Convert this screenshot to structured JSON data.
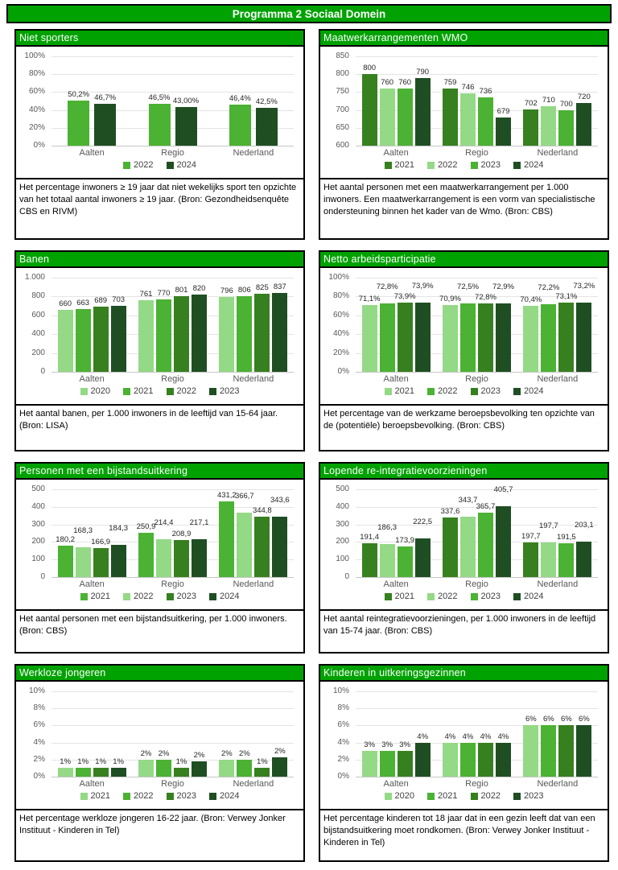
{
  "page_title": "Programma 2 Sociaal Domein",
  "palette": {
    "light_green": "#94D986",
    "bright_green": "#4BB233",
    "mid_dark_green": "#37801F",
    "dark_green": "#1F4E23",
    "header_green": "#00A202",
    "grid_line": "#E4E4E4",
    "axis_line": "#C6C6C6",
    "tick_text": "#595959",
    "data_label_text": "#262626"
  },
  "panels": [
    {
      "title": "Niet sporters",
      "caption": "Het percentage inwoners ≥ 19 jaar dat niet wekelijks sport ten opzichte van het totaal aantal inwoners ≥ 19 jaar. (Bron: Gezondheidsenquête CBS en RIVM)",
      "chart_data": {
        "type": "bar",
        "categories": [
          "Aalten",
          "Regio",
          "Nederland"
        ],
        "ymin": 0,
        "ymax": 100,
        "yticks": [
          {
            "v": 0,
            "label": "0%"
          },
          {
            "v": 20,
            "label": "20%"
          },
          {
            "v": 40,
            "label": "40%"
          },
          {
            "v": 60,
            "label": "60%"
          },
          {
            "v": 80,
            "label": "80%"
          },
          {
            "v": 100,
            "label": "100%"
          }
        ],
        "legend_position": "bottom",
        "series": [
          {
            "name": "2022",
            "shade": "bright_green",
            "values": [
              50.2,
              46.5,
              46.4
            ],
            "labels": [
              "50,2%",
              "46,5%",
              "46,4%"
            ]
          },
          {
            "name": "2024",
            "shade": "dark_green",
            "values": [
              46.7,
              43.0,
              42.5
            ],
            "labels": [
              "46,7%",
              "43,00%",
              "42,5%"
            ]
          }
        ]
      }
    },
    {
      "title": "Maatwerkarrangementen WMO",
      "caption": "Het aantal personen met een maatwerkarrangement per 1.000 inwoners. Een maatwerkarrangement is een vorm van specialistische ondersteuning binnen het kader van de Wmo. (Bron: CBS)",
      "chart_data": {
        "type": "bar",
        "categories": [
          "Aalten",
          "Regio",
          "Nederland"
        ],
        "ymin": 600,
        "ymax": 850,
        "yticks": [
          {
            "v": 600,
            "label": "600"
          },
          {
            "v": 650,
            "label": "650"
          },
          {
            "v": 700,
            "label": "700"
          },
          {
            "v": 750,
            "label": "750"
          },
          {
            "v": 800,
            "label": "800"
          },
          {
            "v": 850,
            "label": "850"
          }
        ],
        "legend_position": "bottom",
        "series": [
          {
            "name": "2021",
            "shade": "mid_dark_green",
            "values": [
              800,
              759,
              702
            ],
            "labels": [
              "800",
              "759",
              "702"
            ]
          },
          {
            "name": "2022",
            "shade": "light_green",
            "values": [
              760,
              746,
              710
            ],
            "labels": [
              "760",
              "746",
              "710"
            ]
          },
          {
            "name": "2023",
            "shade": "bright_green",
            "values": [
              760,
              736,
              700
            ],
            "labels": [
              "760",
              "736",
              "700"
            ]
          },
          {
            "name": "2024",
            "shade": "dark_green",
            "values": [
              790,
              679,
              720
            ],
            "labels": [
              "790",
              "679",
              "720"
            ]
          }
        ]
      }
    },
    {
      "title": "Banen",
      "caption": "Het aantal banen, per 1.000 inwoners in de leeftijd van 15-64 jaar. (Bron: LISA)",
      "chart_data": {
        "type": "bar",
        "categories": [
          "Aalten",
          "Regio",
          "Nederland"
        ],
        "ymin": 0,
        "ymax": 1000,
        "yticks": [
          {
            "v": 0,
            "label": "0"
          },
          {
            "v": 200,
            "label": "200"
          },
          {
            "v": 400,
            "label": "400"
          },
          {
            "v": 600,
            "label": "600"
          },
          {
            "v": 800,
            "label": "800"
          },
          {
            "v": 1000,
            "label": "1.000"
          }
        ],
        "legend_position": "bottom",
        "series": [
          {
            "name": "2020",
            "shade": "light_green",
            "values": [
              660,
              761,
              796
            ],
            "labels": [
              "660",
              "761",
              "796"
            ]
          },
          {
            "name": "2021",
            "shade": "bright_green",
            "values": [
              663,
              770,
              806
            ],
            "labels": [
              "663",
              "770",
              "806"
            ]
          },
          {
            "name": "2022",
            "shade": "mid_dark_green",
            "values": [
              689,
              801,
              825
            ],
            "labels": [
              "689",
              "801",
              "825"
            ]
          },
          {
            "name": "2023",
            "shade": "dark_green",
            "values": [
              703,
              820,
              837
            ],
            "labels": [
              "703",
              "820",
              "837"
            ]
          }
        ]
      }
    },
    {
      "title": "Netto arbeidsparticipatie",
      "caption": "Het percentage van de werkzame beroepsbevolking ten opzichte van de (potentiële) beroepsbevolking. (Bron: CBS)",
      "chart_data": {
        "type": "bar",
        "categories": [
          "Aalten",
          "Regio",
          "Nederland"
        ],
        "ymin": 0,
        "ymax": 100,
        "yticks": [
          {
            "v": 0,
            "label": "0%"
          },
          {
            "v": 20,
            "label": "20%"
          },
          {
            "v": 40,
            "label": "40%"
          },
          {
            "v": 60,
            "label": "60%"
          },
          {
            "v": 80,
            "label": "80%"
          },
          {
            "v": 100,
            "label": "100%"
          }
        ],
        "legend_position": "bottom",
        "series": [
          {
            "name": "2021",
            "shade": "light_green",
            "values": [
              71.1,
              70.9,
              70.4
            ],
            "labels": [
              "71,1%",
              "70,9%",
              "70,4%"
            ]
          },
          {
            "name": "2022",
            "shade": "bright_green",
            "values": [
              72.8,
              72.5,
              72.2
            ],
            "labels": [
              "72,8%",
              "72,5%",
              "72,2%"
            ]
          },
          {
            "name": "2023",
            "shade": "mid_dark_green",
            "values": [
              73.9,
              72.8,
              73.1
            ],
            "labels": [
              "73,9%",
              "72,8%",
              "73,1%"
            ]
          },
          {
            "name": "2024",
            "shade": "dark_green",
            "values": [
              73.9,
              72.9,
              73.2
            ],
            "labels": [
              "73,9%",
              "72,9%",
              "73,2%"
            ]
          }
        ]
      }
    },
    {
      "title": "Personen met een bijstandsuitkering",
      "caption": "Het aantal personen met een bijstandsuitkering, per 1.000 inwoners. (Bron: CBS)",
      "chart_data": {
        "type": "bar",
        "categories": [
          "Aalten",
          "Regio",
          "Nederland"
        ],
        "ymin": 0,
        "ymax": 500,
        "yticks": [
          {
            "v": 0,
            "label": "0"
          },
          {
            "v": 100,
            "label": "100"
          },
          {
            "v": 200,
            "label": "200"
          },
          {
            "v": 300,
            "label": "300"
          },
          {
            "v": 400,
            "label": "400"
          },
          {
            "v": 500,
            "label": "500"
          }
        ],
        "legend_position": "bottom",
        "series": [
          {
            "name": "2021",
            "shade": "bright_green",
            "values": [
              180.2,
              250.9,
              431.2
            ],
            "labels": [
              "180,2",
              "250,9",
              "431,2"
            ]
          },
          {
            "name": "2022",
            "shade": "light_green",
            "values": [
              168.3,
              214.4,
              366.7
            ],
            "labels": [
              "168,3",
              "214,4",
              "366,7"
            ]
          },
          {
            "name": "2023",
            "shade": "mid_dark_green",
            "values": [
              166.9,
              208.9,
              344.8
            ],
            "labels": [
              "166,9",
              "208,9",
              "344,8"
            ]
          },
          {
            "name": "2024",
            "shade": "dark_green",
            "values": [
              184.3,
              217.1,
              343.6
            ],
            "labels": [
              "184,3",
              "217,1",
              "343,6"
            ]
          }
        ]
      }
    },
    {
      "title": "Lopende re-integratievoorzieningen",
      "caption": "Het aantal reintegratievoorzieningen, per 1.000 inwoners in de leeftijd van 15-74 jaar. (Bron: CBS)",
      "chart_data": {
        "type": "bar",
        "categories": [
          "Aalten",
          "Regio",
          "Nederland"
        ],
        "ymin": 0,
        "ymax": 500,
        "yticks": [
          {
            "v": 0,
            "label": "0"
          },
          {
            "v": 100,
            "label": "100"
          },
          {
            "v": 200,
            "label": "200"
          },
          {
            "v": 300,
            "label": "300"
          },
          {
            "v": 400,
            "label": "400"
          },
          {
            "v": 500,
            "label": "500"
          }
        ],
        "legend_position": "bottom",
        "series": [
          {
            "name": "2021",
            "shade": "mid_dark_green",
            "values": [
              191.4,
              337.6,
              197.7
            ],
            "labels": [
              "191,4",
              "337,6",
              "197,7"
            ]
          },
          {
            "name": "2022",
            "shade": "light_green",
            "values": [
              186.3,
              343.7,
              197.7
            ],
            "labels": [
              "186,3",
              "343,7",
              "197,7"
            ]
          },
          {
            "name": "2023",
            "shade": "bright_green",
            "values": [
              173.9,
              365.7,
              191.5
            ],
            "labels": [
              "173,9",
              "365,7",
              "191,5"
            ]
          },
          {
            "name": "2024",
            "shade": "dark_green",
            "values": [
              222.5,
              405.7,
              203.1
            ],
            "labels": [
              "222,5",
              "405,7",
              "203,1"
            ]
          }
        ]
      }
    },
    {
      "title": "Werkloze jongeren",
      "caption": "Het percentage werkloze jongeren 16-22 jaar. (Bron: Verwey Jonker Instituut - Kinderen in Tel)",
      "chart_data": {
        "type": "bar",
        "categories": [
          "Aalten",
          "Regio",
          "Nederland"
        ],
        "ymin": 0,
        "ymax": 10,
        "yticks": [
          {
            "v": 0,
            "label": "0%"
          },
          {
            "v": 2,
            "label": "2%"
          },
          {
            "v": 4,
            "label": "4%"
          },
          {
            "v": 6,
            "label": "6%"
          },
          {
            "v": 8,
            "label": "8%"
          },
          {
            "v": 10,
            "label": "10%"
          }
        ],
        "legend_position": "bottom",
        "series": [
          {
            "name": "2021",
            "shade": "light_green",
            "values": [
              1,
              2,
              2
            ],
            "labels": [
              "1%",
              "2%",
              "2%"
            ]
          },
          {
            "name": "2022",
            "shade": "bright_green",
            "values": [
              1,
              2,
              2
            ],
            "labels": [
              "1%",
              "2%",
              "2%"
            ]
          },
          {
            "name": "2023",
            "shade": "mid_dark_green",
            "values": [
              1,
              1,
              1
            ],
            "labels": [
              "1%",
              "1%",
              "1%"
            ]
          },
          {
            "name": "2024",
            "shade": "dark_green",
            "values": [
              1,
              1.8,
              2.3
            ],
            "labels": [
              "1%",
              "2%",
              "2%"
            ]
          }
        ]
      }
    },
    {
      "title": "Kinderen in uitkeringsgezinnen",
      "caption": "Het percentage kinderen tot 18 jaar dat in een gezin leeft dat van een bijstandsuitkering moet rondkomen. (Bron: Verwey Jonker Instituut - Kinderen in Tel)",
      "chart_data": {
        "type": "bar",
        "categories": [
          "Aalten",
          "Regio",
          "Nederland"
        ],
        "ymin": 0,
        "ymax": 10,
        "yticks": [
          {
            "v": 0,
            "label": "0%"
          },
          {
            "v": 2,
            "label": "2%"
          },
          {
            "v": 4,
            "label": "4%"
          },
          {
            "v": 6,
            "label": "6%"
          },
          {
            "v": 8,
            "label": "8%"
          },
          {
            "v": 10,
            "label": "10%"
          }
        ],
        "legend_position": "bottom",
        "series": [
          {
            "name": "2020",
            "shade": "light_green",
            "values": [
              3,
              4,
              6
            ],
            "labels": [
              "3%",
              "4%",
              "6%"
            ]
          },
          {
            "name": "2021",
            "shade": "bright_green",
            "values": [
              3,
              4,
              6
            ],
            "labels": [
              "3%",
              "4%",
              "6%"
            ]
          },
          {
            "name": "2022",
            "shade": "mid_dark_green",
            "values": [
              3,
              4,
              6
            ],
            "labels": [
              "3%",
              "4%",
              "6%"
            ]
          },
          {
            "name": "2023",
            "shade": "dark_green",
            "values": [
              4,
              4,
              6
            ],
            "labels": [
              "4%",
              "4%",
              "6%"
            ]
          }
        ]
      }
    }
  ]
}
